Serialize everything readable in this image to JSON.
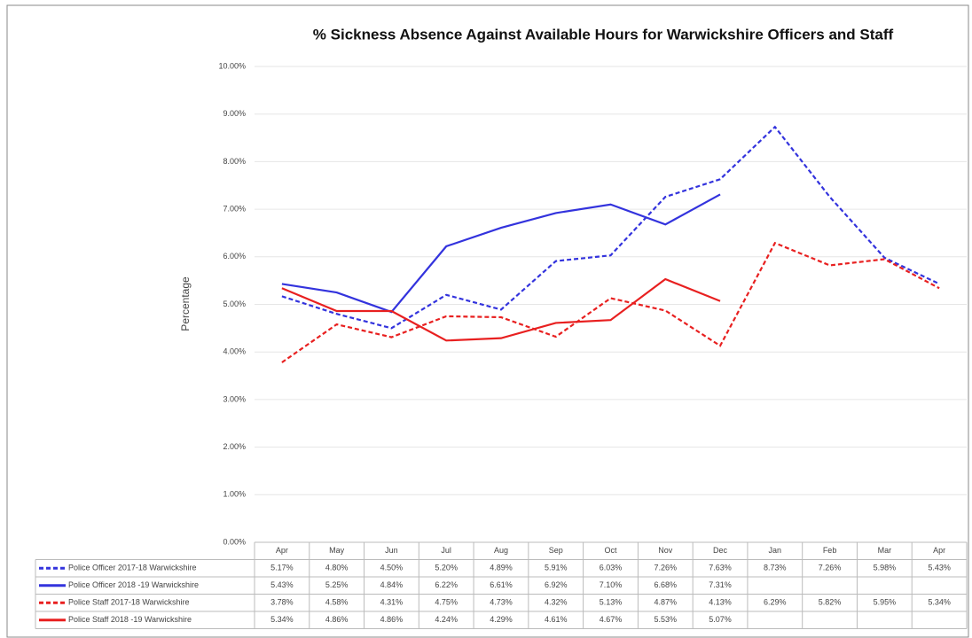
{
  "chart_data": {
    "type": "line",
    "title": "% Sickness Absence Against Available Hours for Warwickshire Officers and Staff",
    "y_label": "Percentage",
    "categories": [
      "Apr",
      "May",
      "Jun",
      "Jul",
      "Aug",
      "Sep",
      "Oct",
      "Nov",
      "Dec",
      "Jan",
      "Feb",
      "Mar",
      "Apr"
    ],
    "ylim": [
      0,
      10
    ],
    "yticks": [
      {
        "value": 0,
        "label": "0.00%"
      },
      {
        "value": 1,
        "label": "1.00%"
      },
      {
        "value": 2,
        "label": "2.00%"
      },
      {
        "value": 3,
        "label": "3.00%"
      },
      {
        "value": 4,
        "label": "4.00%"
      },
      {
        "value": 5,
        "label": "5.00%"
      },
      {
        "value": 6,
        "label": "6.00%"
      },
      {
        "value": 7,
        "label": "7.00%"
      },
      {
        "value": 8,
        "label": "8.00%"
      },
      {
        "value": 9,
        "label": "9.00%"
      },
      {
        "value": 10,
        "label": "10.00%"
      }
    ],
    "grid": true,
    "series": [
      {
        "name": "Police Officer 2017-18 Warwickshire",
        "color": "#3333dd",
        "dashed": true,
        "values": [
          5.17,
          4.8,
          4.5,
          5.2,
          4.89,
          5.91,
          6.03,
          7.26,
          7.63,
          8.73,
          7.26,
          5.98,
          5.43
        ],
        "value_labels": [
          "5.17%",
          "4.80%",
          "4.50%",
          "5.20%",
          "4.89%",
          "5.91%",
          "6.03%",
          "7.26%",
          "7.63%",
          "8.73%",
          "7.26%",
          "5.98%",
          "5.43%"
        ]
      },
      {
        "name": "Police Officer 2018 -19 Warwickshire",
        "color": "#3333dd",
        "dashed": false,
        "values": [
          5.43,
          5.25,
          4.84,
          6.22,
          6.61,
          6.92,
          7.1,
          6.68,
          7.31,
          null,
          null,
          null,
          null
        ],
        "value_labels": [
          "5.43%",
          "5.25%",
          "4.84%",
          "6.22%",
          "6.61%",
          "6.92%",
          "7.10%",
          "6.68%",
          "7.31%",
          null,
          null,
          null,
          null
        ]
      },
      {
        "name": "Police Staff 2017-18 Warwickshire",
        "color": "#e82020",
        "dashed": true,
        "values": [
          3.78,
          4.58,
          4.31,
          4.75,
          4.73,
          4.32,
          5.13,
          4.87,
          4.13,
          6.29,
          5.82,
          5.95,
          5.34
        ],
        "value_labels": [
          "3.78%",
          "4.58%",
          "4.31%",
          "4.75%",
          "4.73%",
          "4.32%",
          "5.13%",
          "4.87%",
          "4.13%",
          "6.29%",
          "5.82%",
          "5.95%",
          "5.34%"
        ]
      },
      {
        "name": "Police Staff 2018 -19 Warwickshire",
        "color": "#e82020",
        "dashed": false,
        "values": [
          5.34,
          4.86,
          4.86,
          4.24,
          4.29,
          4.61,
          4.67,
          5.53,
          5.07,
          null,
          null,
          null,
          null
        ],
        "value_labels": [
          "5.34%",
          "4.86%",
          "4.86%",
          "4.24%",
          "4.29%",
          "4.61%",
          "4.67%",
          "5.53%",
          "5.07%",
          null,
          null,
          null,
          null
        ]
      }
    ]
  }
}
